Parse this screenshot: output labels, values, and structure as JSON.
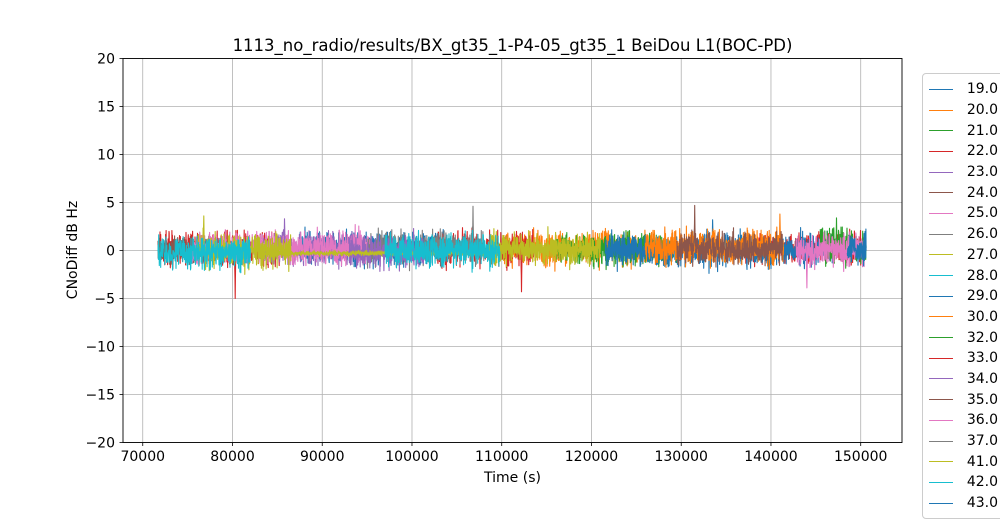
{
  "figure": {
    "title": "1113_no_radio/results/BX_gt35_1-P4-05_gt35_1 BeiDou L1(BOC-PD)",
    "xlabel": "Time (s)",
    "ylabel": "CNoDiff dB Hz"
  },
  "chart_data": {
    "type": "line",
    "title": "1113_no_radio/results/BX_gt35_1-P4-05_gt35_1 BeiDou L1(BOC-PD)",
    "xlabel": "Time (s)",
    "ylabel": "CNoDiff dB Hz",
    "xlim": [
      67800,
      154600
    ],
    "ylim": [
      -20,
      20
    ],
    "xticks": [
      70000,
      80000,
      90000,
      100000,
      110000,
      120000,
      130000,
      140000,
      150000
    ],
    "xtick_labels": [
      "70000",
      "80000",
      "90000",
      "100000",
      "110000",
      "120000",
      "130000",
      "140000",
      "150000"
    ],
    "yticks": [
      -20,
      -15,
      -10,
      -5,
      0,
      5,
      10,
      15,
      20
    ],
    "ytick_labels": [
      "−20",
      "−15",
      "−10",
      "−5",
      "0",
      "5",
      "10",
      "15",
      "20"
    ],
    "grid": true,
    "grid_color": "#b0b0b0",
    "legend_position": "right",
    "sample_step_s": 25,
    "series": [
      {
        "label": "19.0",
        "color": "#1f77b4",
        "segments": [
          [
            87500,
            103500
          ]
        ],
        "mean": 0.2,
        "std": 0.8,
        "spikes": []
      },
      {
        "label": "20.0",
        "color": "#ff7f0e",
        "segments": [
          [
            110300,
            127000
          ]
        ],
        "mean": 0.2,
        "std": 0.8,
        "spikes": []
      },
      {
        "label": "21.0",
        "color": "#2ca02c",
        "segments": [
          [
            116000,
            129500
          ]
        ],
        "mean": 0.1,
        "std": 0.8,
        "spikes": []
      },
      {
        "label": "22.0",
        "color": "#d62728",
        "segments": [
          [
            71900,
            86000
          ],
          [
            136500,
            150400
          ]
        ],
        "mean": 0.2,
        "std": 0.8,
        "spikes": [
          [
            80300,
            -5.0
          ]
        ]
      },
      {
        "label": "23.0",
        "color": "#9467bd",
        "segments": [
          [
            83000,
            93500
          ]
        ],
        "mean": 0.1,
        "std": 0.8,
        "spikes": [
          [
            85800,
            3.3
          ]
        ]
      },
      {
        "label": "24.0",
        "color": "#8c564b",
        "segments": [
          [
            71700,
            80500
          ]
        ],
        "mean": 0.0,
        "std": 0.75,
        "spikes": []
      },
      {
        "label": "25.0",
        "color": "#e377c2",
        "segments": [
          [
            75500,
            95300
          ]
        ],
        "mean": 0.3,
        "std": 0.8,
        "spikes": []
      },
      {
        "label": "26.0",
        "color": "#7f7f7f",
        "segments": [
          [
            95000,
            102000
          ]
        ],
        "mean": 0.2,
        "std": 0.8,
        "spikes": []
      },
      {
        "label": "27.0",
        "color": "#bcbd22",
        "segments": [
          [
            76000,
            86500
          ]
        ],
        "mean": 0.0,
        "std": 0.8,
        "spikes": [
          [
            76800,
            3.6
          ]
        ]
      },
      {
        "label": "28.0",
        "color": "#17becf",
        "segments": [
          [
            71700,
            82000
          ]
        ],
        "mean": -0.2,
        "std": 0.8,
        "spikes": []
      },
      {
        "label": "29.0",
        "color": "#1f77b4",
        "segments": [
          [
            121500,
            147000
          ]
        ],
        "mean": 0.0,
        "std": 0.8,
        "spikes": [
          [
            133500,
            3.2
          ]
        ]
      },
      {
        "label": "30.0",
        "color": "#ff7f0e",
        "segments": [
          [
            126000,
            141400
          ]
        ],
        "mean": 0.3,
        "std": 0.8,
        "spikes": [
          [
            141000,
            3.8
          ]
        ]
      },
      {
        "label": "32.0",
        "color": "#2ca02c",
        "segments": [
          [
            145500,
            150600
          ]
        ],
        "mean": 0.5,
        "std": 0.85,
        "spikes": [
          [
            147300,
            3.4
          ]
        ]
      },
      {
        "label": "33.0",
        "color": "#d62728",
        "segments": [
          [
            102800,
            113600
          ]
        ],
        "mean": 0.2,
        "std": 0.85,
        "spikes": [
          [
            112200,
            -4.3
          ]
        ]
      },
      {
        "label": "34.0",
        "color": "#9467bd",
        "segments": [
          [
            93000,
            101500
          ]
        ],
        "mean": -0.2,
        "std": 0.8,
        "spikes": []
      },
      {
        "label": "35.0",
        "color": "#8c564b",
        "segments": [
          [
            129500,
            141300
          ]
        ],
        "mean": 0.2,
        "std": 0.8,
        "spikes": [
          [
            131500,
            4.7
          ]
        ]
      },
      {
        "label": "36.0",
        "color": "#e377c2",
        "segments": [
          [
            142800,
            150400
          ]
        ],
        "mean": 0.0,
        "std": 0.9,
        "spikes": [
          [
            144000,
            -3.9
          ]
        ]
      },
      {
        "label": "37.0",
        "color": "#7f7f7f",
        "segments": [
          [
            101500,
            108000
          ]
        ],
        "mean": 0.3,
        "std": 0.8,
        "spikes": [
          [
            106800,
            4.6
          ]
        ]
      },
      {
        "label": "41.0",
        "color": "#bcbd22",
        "segments": [
          [
            83500,
            121000
          ]
        ],
        "mean": 0.1,
        "std": 0.8,
        "flat_until": 108500,
        "flat_mean": -0.3,
        "flat_std": 0.12,
        "spikes": []
      },
      {
        "label": "42.0",
        "color": "#17becf",
        "segments": [
          [
            97000,
            109800
          ]
        ],
        "mean": 0.0,
        "std": 0.8,
        "spikes": []
      },
      {
        "label": "43.0",
        "color": "#1f77b4",
        "segments": [
          [
            148500,
            150600
          ]
        ],
        "mean": 0.3,
        "std": 0.8,
        "spikes": []
      }
    ]
  }
}
